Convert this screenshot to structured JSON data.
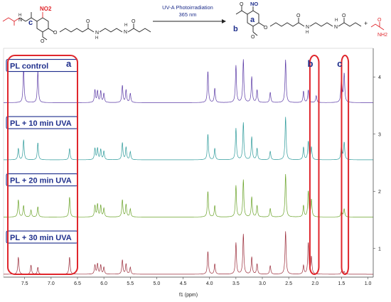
{
  "scheme": {
    "arrow_line1": "UV-A Photoirradiation",
    "arrow_line2": "365 nm",
    "reactant_groups": [
      "NO2",
      "N",
      "H",
      "O",
      "O",
      "N",
      "H",
      "H",
      "N",
      "O",
      "O"
    ],
    "product_groups": [
      "O",
      "NO",
      "O",
      "O",
      "N",
      "H",
      "H",
      "N",
      "O",
      "O"
    ],
    "byproduct_groups": [
      "O",
      "NH2"
    ],
    "plus": "+",
    "letters": {
      "reactant_c": "c",
      "product_b": "b",
      "product_a": "a"
    }
  },
  "chart_data": {
    "type": "line",
    "title": "",
    "xlabel": "f1 (ppm)",
    "ylabel": "",
    "xlim": [
      7.9,
      0.9
    ],
    "x_reversed": true,
    "ylim": [
      0.5,
      4.5
    ],
    "x_ticks": [
      "7.5",
      "7.0",
      "6.5",
      "6.0",
      "5.5",
      "5.0",
      "4.5",
      "4.0",
      "3.5",
      "3.0",
      "2.5",
      "2.0",
      "1.5",
      "1.0"
    ],
    "y_ticks": [
      "1",
      "2",
      "3",
      "4"
    ],
    "series": [
      {
        "name": "PL control",
        "color": "#5b3aa6",
        "baseline": 3.55,
        "peaks": [
          [
            7.52,
            0.6
          ],
          [
            7.25,
            0.55
          ],
          [
            6.17,
            0.22
          ],
          [
            6.12,
            0.2
          ],
          [
            6.06,
            0.2
          ],
          [
            6.0,
            0.16
          ],
          [
            5.65,
            0.3
          ],
          [
            5.58,
            0.22
          ],
          [
            5.5,
            0.16
          ],
          [
            4.03,
            0.55
          ],
          [
            3.9,
            0.25
          ],
          [
            3.5,
            0.65
          ],
          [
            3.36,
            0.75
          ],
          [
            3.2,
            0.45
          ],
          [
            3.1,
            0.22
          ],
          [
            2.85,
            0.18
          ],
          [
            2.56,
            0.75
          ],
          [
            2.22,
            0.2
          ],
          [
            2.13,
            0.22
          ],
          [
            1.98,
            0.12
          ],
          [
            1.5,
            0.5
          ],
          [
            1.45,
            0.5
          ]
        ]
      },
      {
        "name": "PL + 10 min UVA",
        "color": "#2e9b9b",
        "baseline": 2.55,
        "peaks": [
          [
            7.62,
            0.2
          ],
          [
            7.52,
            0.35
          ],
          [
            7.25,
            0.3
          ],
          [
            6.65,
            0.2
          ],
          [
            6.17,
            0.2
          ],
          [
            6.12,
            0.2
          ],
          [
            6.06,
            0.18
          ],
          [
            6.0,
            0.15
          ],
          [
            5.65,
            0.3
          ],
          [
            5.58,
            0.22
          ],
          [
            5.5,
            0.14
          ],
          [
            4.03,
            0.45
          ],
          [
            3.9,
            0.2
          ],
          [
            3.5,
            0.55
          ],
          [
            3.36,
            0.65
          ],
          [
            3.2,
            0.4
          ],
          [
            3.1,
            0.2
          ],
          [
            2.85,
            0.15
          ],
          [
            2.56,
            0.75
          ],
          [
            2.22,
            0.22
          ],
          [
            2.13,
            0.32
          ],
          [
            2.07,
            0.22
          ],
          [
            1.5,
            0.3
          ],
          [
            1.45,
            0.3
          ]
        ]
      },
      {
        "name": "PL + 20 min UVA",
        "color": "#6aa329",
        "baseline": 1.55,
        "peaks": [
          [
            7.62,
            0.3
          ],
          [
            7.52,
            0.2
          ],
          [
            7.38,
            0.12
          ],
          [
            7.25,
            0.18
          ],
          [
            6.65,
            0.35
          ],
          [
            6.17,
            0.2
          ],
          [
            6.12,
            0.22
          ],
          [
            6.06,
            0.2
          ],
          [
            6.0,
            0.15
          ],
          [
            5.65,
            0.3
          ],
          [
            5.58,
            0.22
          ],
          [
            5.5,
            0.14
          ],
          [
            4.03,
            0.45
          ],
          [
            3.9,
            0.2
          ],
          [
            3.5,
            0.55
          ],
          [
            3.36,
            0.65
          ],
          [
            3.2,
            0.35
          ],
          [
            3.1,
            0.2
          ],
          [
            2.85,
            0.15
          ],
          [
            2.56,
            0.75
          ],
          [
            2.22,
            0.2
          ],
          [
            2.13,
            0.45
          ],
          [
            2.07,
            0.3
          ],
          [
            1.5,
            0.14
          ],
          [
            1.45,
            0.14
          ]
        ]
      },
      {
        "name": "PL + 30 min UVA",
        "color": "#9b2d3b",
        "baseline": 0.55,
        "peaks": [
          [
            7.62,
            0.3
          ],
          [
            7.38,
            0.16
          ],
          [
            7.25,
            0.12
          ],
          [
            6.65,
            0.3
          ],
          [
            6.17,
            0.16
          ],
          [
            6.12,
            0.18
          ],
          [
            6.06,
            0.16
          ],
          [
            6.0,
            0.12
          ],
          [
            5.65,
            0.25
          ],
          [
            5.58,
            0.18
          ],
          [
            5.5,
            0.12
          ],
          [
            4.03,
            0.4
          ],
          [
            3.9,
            0.18
          ],
          [
            3.5,
            0.55
          ],
          [
            3.36,
            0.7
          ],
          [
            3.2,
            0.3
          ],
          [
            3.1,
            0.18
          ],
          [
            2.85,
            0.15
          ],
          [
            2.56,
            0.75
          ],
          [
            2.22,
            0.15
          ],
          [
            2.13,
            0.55
          ],
          [
            2.07,
            0.3
          ],
          [
            1.5,
            0.05
          ],
          [
            1.45,
            0.05
          ]
        ]
      }
    ],
    "regions": [
      {
        "letter": "a",
        "from": 7.9,
        "to": 6.5
      },
      {
        "letter": "b",
        "from": 2.18,
        "to": 1.93
      },
      {
        "letter": "c",
        "from": 1.58,
        "to": 1.37
      }
    ],
    "region_color": "#e0262c"
  }
}
